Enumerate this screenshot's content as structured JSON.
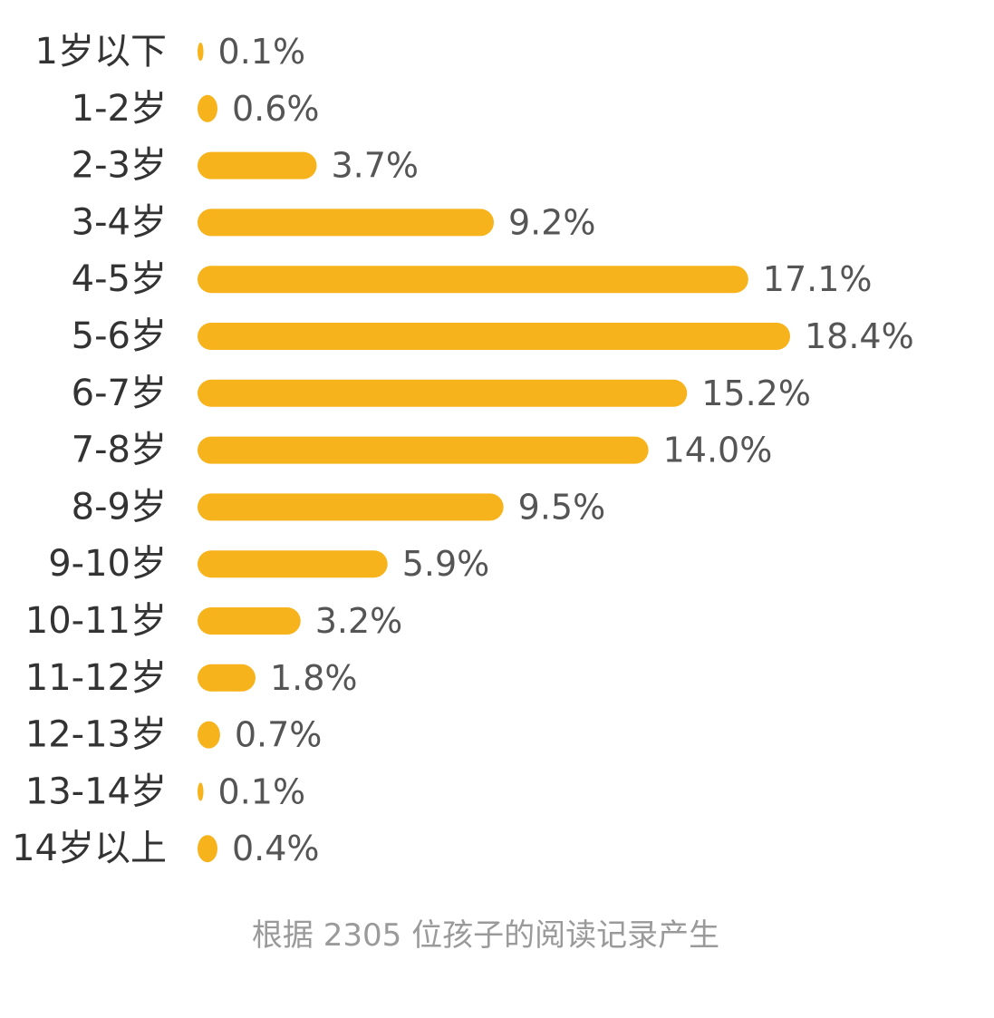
{
  "chart_data": {
    "type": "bar",
    "orientation": "horizontal",
    "categories": [
      "1岁以下",
      "1-2岁",
      "2-3岁",
      "3-4岁",
      "4-5岁",
      "5-6岁",
      "6-7岁",
      "7-8岁",
      "8-9岁",
      "9-10岁",
      "10-11岁",
      "11-12岁",
      "12-13岁",
      "13-14岁",
      "14岁以上"
    ],
    "values": [
      0.1,
      0.6,
      3.7,
      9.2,
      17.1,
      18.4,
      15.2,
      14.0,
      9.5,
      5.9,
      3.2,
      1.8,
      0.7,
      0.1,
      0.4
    ],
    "value_labels": [
      "0.1%",
      "0.6%",
      "3.7%",
      "9.2%",
      "17.1%",
      "18.4%",
      "15.2%",
      "14.0%",
      "9.5%",
      "5.9%",
      "3.2%",
      "1.8%",
      "0.7%",
      "0.1%",
      "0.4%"
    ],
    "unit": "%",
    "xlim": [
      0,
      18.4
    ],
    "grid": false,
    "legend": "none",
    "bar_color": "#F7B31B"
  },
  "footnote": "根据 2305 位孩子的阅读记录产生"
}
